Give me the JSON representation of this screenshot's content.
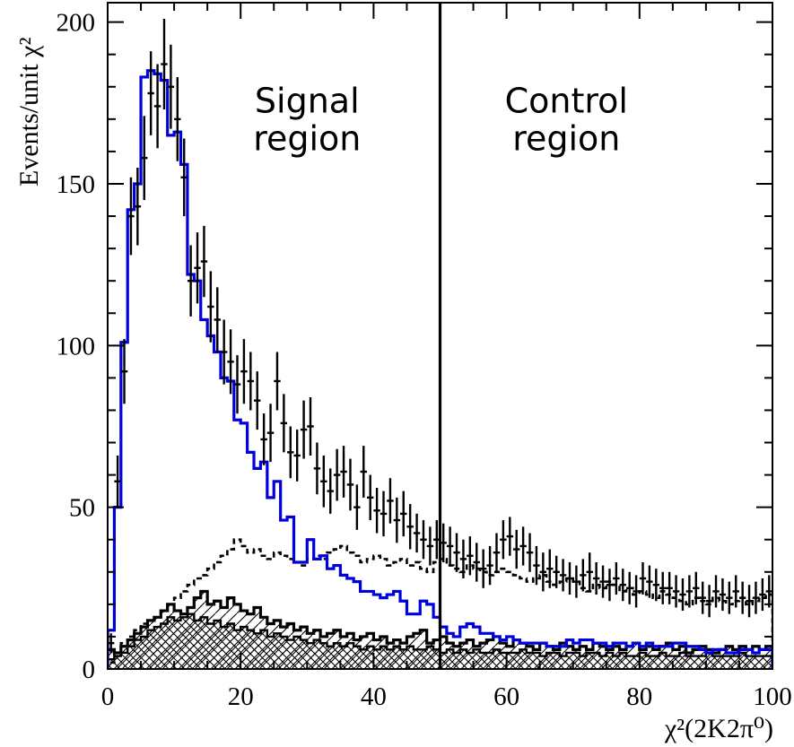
{
  "chart_data": {
    "type": "line",
    "title": "",
    "xlabel": "χ²(2K2π⁰)",
    "ylabel": "Events/unit χ²",
    "xlim": [
      0,
      100
    ],
    "ylim": [
      0,
      206
    ],
    "x_ticks": [
      "0",
      "20",
      "40",
      "60",
      "80",
      "100"
    ],
    "y_ticks": [
      "0",
      "50",
      "100",
      "150",
      "200"
    ],
    "grid": false,
    "cut_line_x": 50,
    "annotations": [
      {
        "lines": [
          "Signal",
          "region"
        ],
        "x": 30,
        "y": 172
      },
      {
        "lines": [
          "Control",
          "region"
        ],
        "x": 69,
        "y": 172
      }
    ],
    "bin_width": 1,
    "series": [
      {
        "kind": "data-points",
        "color": "#000000",
        "values": [
          8,
          58,
          92,
          140,
          143,
          158,
          178,
          174,
          187,
          180,
          170,
          152,
          120,
          124,
          126,
          112,
          108,
          98,
          95,
          88,
          92,
          89,
          83,
          71,
          73,
          89,
          76,
          67,
          66,
          74,
          75,
          62,
          58,
          55,
          60,
          61,
          57,
          50,
          61,
          53,
          49,
          48,
          52,
          46,
          48,
          44,
          42,
          40,
          38,
          40,
          39,
          38,
          36,
          34,
          35,
          33,
          31,
          32,
          36,
          40,
          41,
          37,
          38,
          36,
          32,
          30,
          31,
          30,
          29,
          28,
          27,
          29,
          30,
          28,
          27,
          26,
          28,
          26,
          25,
          24,
          28,
          27,
          26,
          25,
          25,
          24,
          23,
          24,
          25,
          22,
          21,
          24,
          23,
          22,
          24,
          22,
          21,
          22,
          23,
          24
        ],
        "errors": [
          3,
          8,
          10,
          12,
          12,
          13,
          13,
          13,
          14,
          13,
          13,
          12,
          11,
          11,
          11,
          11,
          10,
          10,
          10,
          9,
          10,
          9,
          9,
          8,
          9,
          9,
          9,
          8,
          8,
          9,
          9,
          8,
          8,
          7,
          8,
          8,
          8,
          7,
          8,
          7,
          7,
          7,
          7,
          7,
          7,
          7,
          6,
          6,
          6,
          6,
          6,
          6,
          6,
          6,
          6,
          6,
          6,
          6,
          6,
          6,
          6,
          6,
          6,
          6,
          6,
          6,
          6,
          5,
          5,
          5,
          5,
          5,
          6,
          5,
          5,
          5,
          5,
          5,
          5,
          5,
          5,
          5,
          5,
          5,
          5,
          5,
          5,
          5,
          5,
          5,
          5,
          5,
          5,
          5,
          5,
          5,
          5,
          5,
          5,
          5
        ]
      },
      {
        "kind": "histogram",
        "color": "#0000dd",
        "style": "solid",
        "values": [
          12,
          50,
          101,
          142,
          150,
          183,
          185,
          184,
          182,
          165,
          166,
          156,
          122,
          120,
          108,
          103,
          98,
          90,
          89,
          77,
          76,
          67,
          62,
          64,
          53,
          58,
          46,
          47,
          33,
          33,
          40,
          34,
          35,
          31,
          32,
          29,
          28,
          27,
          24,
          24,
          23,
          22,
          23,
          24,
          21,
          17,
          17,
          21,
          20,
          16,
          13,
          11,
          10,
          13,
          14,
          13,
          11,
          11,
          10,
          9,
          10,
          9,
          8,
          8,
          8,
          8,
          7,
          7,
          7,
          9,
          8,
          9,
          9,
          8,
          8,
          7,
          8,
          8,
          7,
          8,
          7,
          8,
          7,
          7,
          7,
          8,
          8,
          7,
          7,
          6,
          5,
          6,
          6,
          5,
          5,
          6,
          6,
          5,
          6,
          6
        ]
      },
      {
        "kind": "histogram",
        "color": "#000000",
        "style": "dashed",
        "values": [
          2,
          5,
          8,
          10,
          12,
          14,
          15,
          16,
          18,
          20,
          22,
          24,
          26,
          28,
          29,
          31,
          33,
          35,
          37,
          40,
          38,
          36,
          37,
          35,
          34,
          36,
          35,
          34,
          33,
          32,
          34,
          35,
          34,
          36,
          37,
          38,
          36,
          35,
          33,
          34,
          35,
          34,
          32,
          33,
          34,
          32,
          33,
          31,
          30,
          33,
          34,
          32,
          31,
          30,
          32,
          31,
          30,
          29,
          30,
          31,
          30,
          29,
          28,
          27,
          28,
          29,
          27,
          26,
          27,
          28,
          27,
          25,
          24,
          26,
          25,
          27,
          26,
          24,
          25,
          23,
          24,
          23,
          22,
          24,
          23,
          22,
          21,
          20,
          22,
          21,
          20,
          22,
          21,
          20,
          21,
          22,
          20,
          21,
          22,
          23
        ]
      },
      {
        "kind": "histogram",
        "color": "#000000",
        "style": "open-diagonal-hatch",
        "values": [
          6,
          5,
          7,
          9,
          11,
          13,
          15,
          16,
          18,
          20,
          18,
          17,
          19,
          22,
          24,
          20,
          21,
          19,
          22,
          20,
          18,
          17,
          19,
          16,
          14,
          15,
          13,
          14,
          12,
          13,
          11,
          12,
          10,
          11,
          12,
          10,
          11,
          9,
          10,
          11,
          9,
          10,
          8,
          9,
          8,
          10,
          11,
          12,
          8,
          9,
          10,
          8,
          7,
          8,
          9,
          7,
          8,
          9,
          10,
          8,
          7,
          9,
          8,
          7,
          6,
          8,
          7,
          6,
          8,
          7,
          6,
          7,
          6,
          8,
          7,
          6,
          7,
          6,
          7,
          8,
          6,
          7,
          6,
          7,
          8,
          6,
          7,
          5,
          6,
          7,
          6,
          5,
          6,
          7,
          6,
          7,
          6,
          7,
          6,
          7
        ]
      },
      {
        "kind": "histogram",
        "color": "#000000",
        "style": "cross-hatch",
        "values": [
          3,
          4,
          5,
          7,
          9,
          10,
          12,
          13,
          14,
          16,
          15,
          16,
          17,
          15,
          16,
          14,
          15,
          13,
          14,
          12,
          13,
          12,
          11,
          12,
          10,
          11,
          10,
          9,
          10,
          9,
          8,
          9,
          8,
          7,
          8,
          7,
          8,
          7,
          6,
          7,
          6,
          7,
          6,
          7,
          6,
          7,
          6,
          6,
          7,
          6,
          5,
          6,
          5,
          6,
          5,
          6,
          5,
          5,
          6,
          5,
          5,
          5,
          6,
          5,
          5,
          4,
          5,
          5,
          4,
          5,
          5,
          4,
          5,
          5,
          4,
          5,
          4,
          5,
          4,
          4,
          5,
          4,
          4,
          5,
          4,
          4,
          5,
          4,
          4,
          4,
          5,
          4,
          4,
          4,
          4,
          5,
          4,
          4,
          4,
          4
        ]
      }
    ]
  }
}
